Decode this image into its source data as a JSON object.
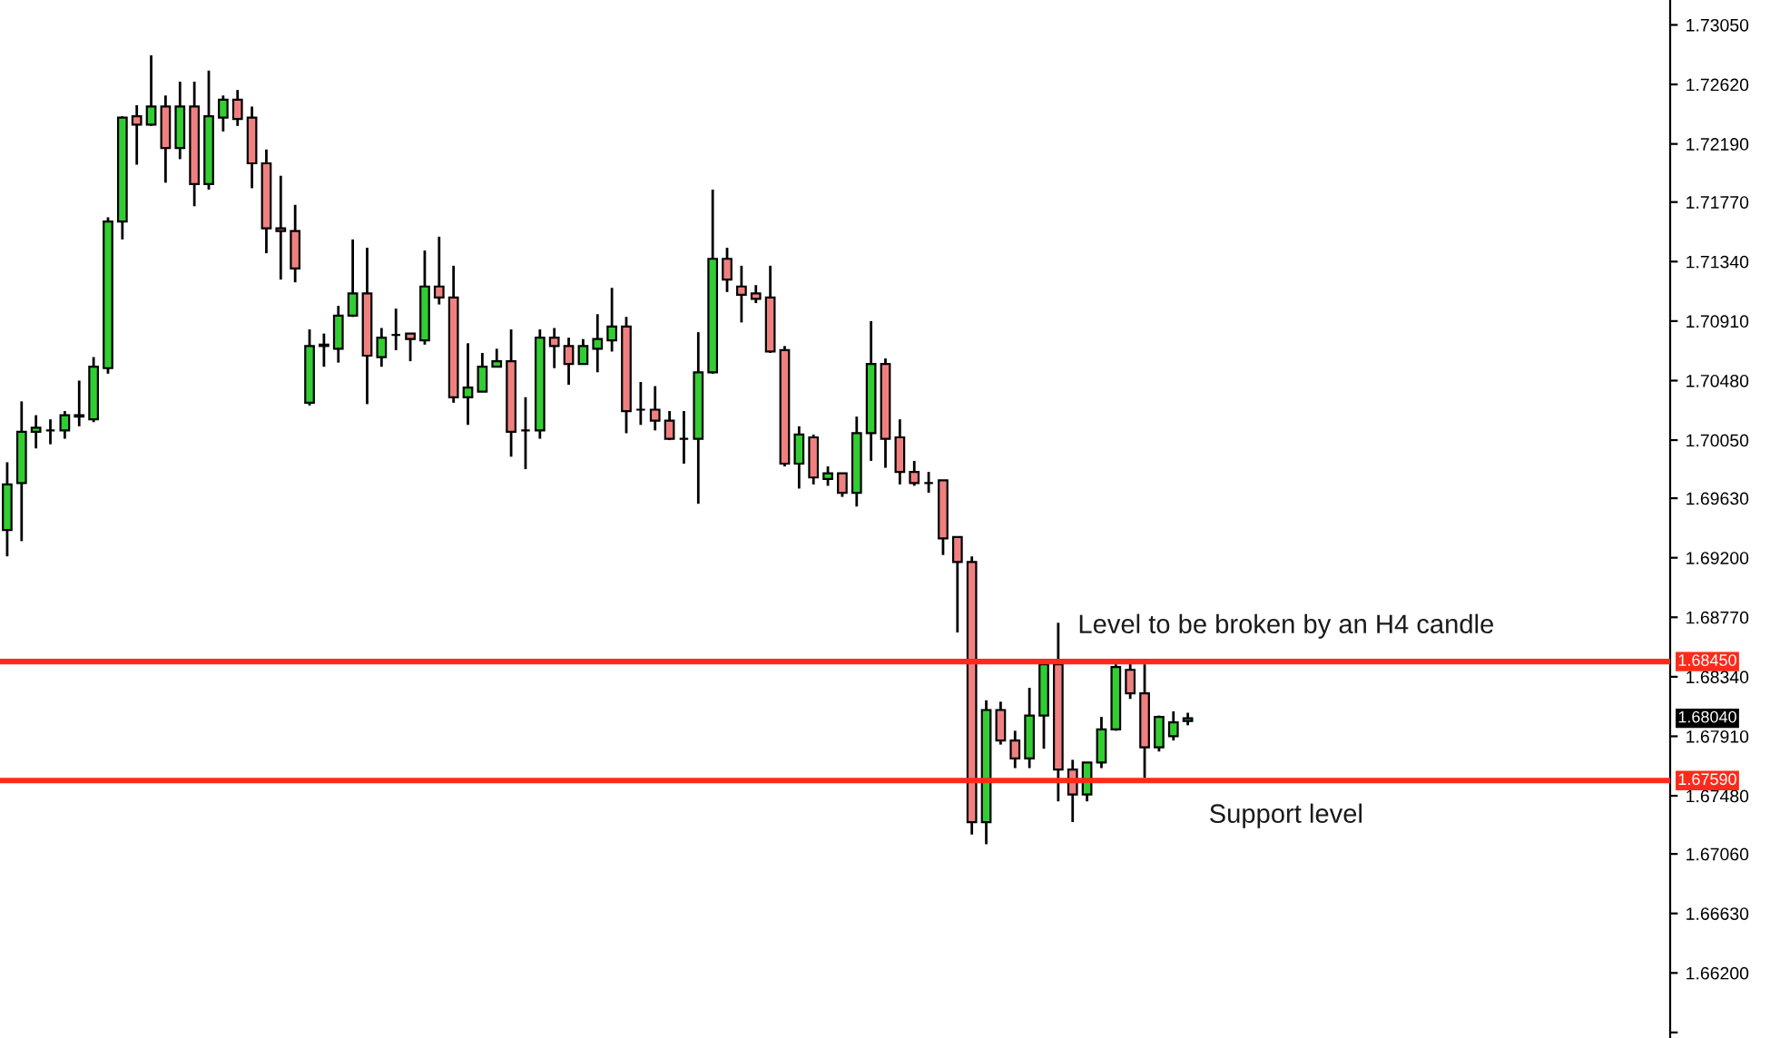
{
  "chart_data": {
    "type": "candlestick",
    "categories": [
      null,
      null,
      null,
      null,
      null,
      null,
      null,
      null,
      null,
      null,
      null,
      null,
      null,
      null,
      null,
      null,
      null,
      null,
      null,
      null,
      null,
      null,
      null,
      null,
      null,
      null,
      null,
      null,
      null,
      null,
      null,
      null,
      null,
      null,
      null,
      null,
      null,
      null,
      null,
      null,
      null,
      null,
      null,
      null,
      null,
      null,
      null,
      null,
      null,
      null,
      null,
      null,
      null,
      null,
      null,
      null,
      null,
      null,
      null,
      null,
      null,
      null,
      null,
      null,
      null,
      null,
      null,
      null,
      null,
      null,
      null,
      null,
      null,
      null,
      null,
      null,
      null,
      null,
      null,
      null,
      null,
      null,
      null,
      null,
      null,
      null,
      null,
      null,
      null,
      null,
      null,
      null,
      null,
      null,
      null,
      null,
      null,
      null,
      null,
      null,
      null,
      null,
      null,
      null,
      null,
      null,
      null,
      null,
      null,
      null,
      null,
      null,
      null,
      null,
      null,
      null
    ],
    "ohlc": [
      [
        1.694,
        1.6989,
        1.6921,
        1.6973
      ],
      [
        1.6974,
        1.7033,
        1.6932,
        1.7011
      ],
      [
        1.7011,
        1.7023,
        1.6999,
        1.7014
      ],
      [
        1.7012,
        1.702,
        1.7002,
        1.7012
      ],
      [
        1.7012,
        1.7026,
        1.7006,
        1.7023
      ],
      [
        1.7022,
        1.7048,
        1.7015,
        1.7023
      ],
      [
        1.702,
        1.7065,
        1.7018,
        1.7058
      ],
      [
        1.7057,
        1.7166,
        1.7053,
        1.7163
      ],
      [
        1.7163,
        1.7239,
        1.715,
        1.7238
      ],
      [
        1.7239,
        1.7247,
        1.7204,
        1.7233
      ],
      [
        1.7233,
        1.7283,
        1.7232,
        1.7246
      ],
      [
        1.7246,
        1.7254,
        1.7191,
        1.7216
      ],
      [
        1.7216,
        1.7264,
        1.7208,
        1.7246
      ],
      [
        1.7246,
        1.7264,
        1.7174,
        1.719
      ],
      [
        1.719,
        1.7272,
        1.7186,
        1.7239
      ],
      [
        1.7238,
        1.7254,
        1.7228,
        1.7251
      ],
      [
        1.7251,
        1.7258,
        1.7232,
        1.7237
      ],
      [
        1.7238,
        1.7246,
        1.7187,
        1.7205
      ],
      [
        1.7205,
        1.7215,
        1.714,
        1.7158
      ],
      [
        1.7158,
        1.7196,
        1.7121,
        1.7156
      ],
      [
        1.7156,
        1.7175,
        1.7119,
        1.7129
      ],
      [
        1.7032,
        1.7085,
        1.703,
        1.7073
      ],
      [
        1.7073,
        1.7082,
        1.7058,
        1.7074
      ],
      [
        1.7071,
        1.7102,
        1.7061,
        1.7095
      ],
      [
        1.7095,
        1.715,
        1.7094,
        1.7111
      ],
      [
        1.7111,
        1.7144,
        1.7031,
        1.7066
      ],
      [
        1.7065,
        1.7086,
        1.7058,
        1.7079
      ],
      [
        1.7081,
        1.71,
        1.707,
        1.7081
      ],
      [
        1.7082,
        1.7082,
        1.7062,
        1.7078
      ],
      [
        1.7077,
        1.7142,
        1.7074,
        1.7116
      ],
      [
        1.7116,
        1.7152,
        1.7103,
        1.7108
      ],
      [
        1.7108,
        1.7131,
        1.7032,
        1.7036
      ],
      [
        1.7036,
        1.7075,
        1.7016,
        1.7043
      ],
      [
        1.704,
        1.7068,
        1.704,
        1.7058
      ],
      [
        1.7058,
        1.7071,
        1.7058,
        1.7062
      ],
      [
        1.7062,
        1.7085,
        1.6993,
        1.7011
      ],
      [
        1.7012,
        1.7036,
        1.6984,
        1.7012
      ],
      [
        1.7012,
        1.7085,
        1.7006,
        1.7079
      ],
      [
        1.7079,
        1.7086,
        1.7057,
        1.7073
      ],
      [
        1.7073,
        1.7079,
        1.7045,
        1.706
      ],
      [
        1.706,
        1.7078,
        1.706,
        1.7073
      ],
      [
        1.7071,
        1.7096,
        1.7054,
        1.7078
      ],
      [
        1.7077,
        1.7115,
        1.7069,
        1.7087
      ],
      [
        1.7087,
        1.7094,
        1.701,
        1.7026
      ],
      [
        1.7027,
        1.7047,
        1.7016,
        1.7027
      ],
      [
        1.7027,
        1.7044,
        1.7012,
        1.7019
      ],
      [
        1.7019,
        1.7026,
        1.7005,
        1.7006
      ],
      [
        1.7006,
        1.7026,
        1.6988,
        1.7006
      ],
      [
        1.7006,
        1.7083,
        1.6959,
        1.7054
      ],
      [
        1.7054,
        1.7186,
        1.7053,
        1.7136
      ],
      [
        1.7136,
        1.7144,
        1.7112,
        1.7121
      ],
      [
        1.7116,
        1.7131,
        1.709,
        1.711
      ],
      [
        1.7111,
        1.7117,
        1.7104,
        1.7107
      ],
      [
        1.7108,
        1.7131,
        1.7068,
        1.7069
      ],
      [
        1.707,
        1.7073,
        1.6986,
        1.6988
      ],
      [
        1.6988,
        1.7015,
        1.697,
        1.7009
      ],
      [
        1.7007,
        1.7009,
        1.6973,
        1.6978
      ],
      [
        1.6977,
        1.6986,
        1.6972,
        1.6981
      ],
      [
        1.6981,
        1.6981,
        1.6964,
        1.6967
      ],
      [
        1.6967,
        1.7022,
        1.6957,
        1.701
      ],
      [
        1.701,
        1.7091,
        1.699,
        1.706
      ],
      [
        1.706,
        1.7064,
        1.6985,
        1.7006
      ],
      [
        1.7007,
        1.702,
        1.6973,
        1.6982
      ],
      [
        1.6982,
        1.699,
        1.6972,
        1.6974
      ],
      [
        1.6974,
        1.6982,
        1.6967,
        1.6974
      ],
      [
        1.6976,
        1.6976,
        1.6922,
        1.6934
      ],
      [
        1.6935,
        1.6935,
        1.6866,
        1.6917
      ],
      [
        1.6917,
        1.6921,
        1.672,
        1.6729
      ],
      [
        1.6729,
        1.6817,
        1.6713,
        1.681
      ],
      [
        1.681,
        1.6816,
        1.6785,
        1.6788
      ],
      [
        1.6788,
        1.6795,
        1.6768,
        1.6775
      ],
      [
        1.6775,
        1.6826,
        1.6768,
        1.6806
      ],
      [
        1.6806,
        1.6843,
        1.6782,
        1.6843
      ],
      [
        1.6843,
        1.6873,
        1.6744,
        1.6767
      ],
      [
        1.6767,
        1.6774,
        1.6729,
        1.6749
      ],
      [
        1.6749,
        1.6772,
        1.6744,
        1.6772
      ],
      [
        1.6772,
        1.6805,
        1.6768,
        1.6796
      ],
      [
        1.6796,
        1.6843,
        1.6795,
        1.6841
      ],
      [
        1.6839,
        1.6847,
        1.6818,
        1.6822
      ],
      [
        1.6822,
        1.6843,
        1.6761,
        1.6783
      ],
      [
        1.6783,
        1.6806,
        1.678,
        1.6805
      ],
      [
        1.6791,
        1.6809,
        1.6788,
        1.6801
      ],
      [
        1.6802,
        1.6808,
        1.6799,
        1.6804
      ],
      null,
      null,
      null,
      null,
      null,
      null,
      null,
      null,
      null,
      null,
      null,
      null,
      null,
      null,
      null,
      null,
      null,
      null,
      null,
      null,
      null,
      null,
      null,
      null,
      null,
      null,
      null,
      null,
      null,
      null,
      null,
      null,
      null
    ],
    "colors": [
      "#32cd32",
      "#32cd32",
      "#32cd32",
      "#000000",
      "#32cd32",
      "#32cd32",
      "#32cd32",
      "#32cd32",
      "#32cd32",
      "#f08080",
      "#32cd32",
      "#f08080",
      "#32cd32",
      "#f08080",
      "#32cd32",
      "#32cd32",
      "#f08080",
      "#f08080",
      "#f08080",
      "#f08080",
      "#f08080",
      "#32cd32",
      "#32cd32",
      "#32cd32",
      "#32cd32",
      "#f08080",
      "#32cd32",
      "#000000",
      "#f08080",
      "#32cd32",
      "#f08080",
      "#f08080",
      "#32cd32",
      "#32cd32",
      "#32cd32",
      "#f08080",
      "#000000",
      "#32cd32",
      "#f08080",
      "#f08080",
      "#32cd32",
      "#32cd32",
      "#32cd32",
      "#f08080",
      "#000000",
      "#f08080",
      "#f08080",
      "#000000",
      "#32cd32",
      "#32cd32",
      "#f08080",
      "#f08080",
      "#f08080",
      "#f08080",
      "#f08080",
      "#32cd32",
      "#f08080",
      "#32cd32",
      "#f08080",
      "#32cd32",
      "#32cd32",
      "#f08080",
      "#f08080",
      "#f08080",
      "#000000",
      "#f08080",
      "#f08080",
      "#f08080",
      "#32cd32",
      "#f08080",
      "#f08080",
      "#32cd32",
      "#32cd32",
      "#f08080",
      "#f08080",
      "#32cd32",
      "#32cd32",
      "#32cd32",
      "#f08080",
      "#f08080",
      "#32cd32",
      "#32cd32",
      "#32cd32",
      null,
      null,
      null,
      null,
      null,
      null,
      null,
      null,
      null,
      null,
      null,
      null,
      null,
      null,
      null,
      null,
      null,
      null,
      null,
      null,
      null,
      null,
      null,
      null,
      null,
      null,
      null,
      null,
      null,
      null,
      null,
      null,
      null
    ],
    "ylim": [
      1.6573,
      1.7323
    ],
    "yticks": [
      {
        "value": 1.7305,
        "label": "1.73050"
      },
      {
        "value": 1.7262,
        "label": "1.72620"
      },
      {
        "value": 1.7219,
        "label": "1.72190"
      },
      {
        "value": 1.7177,
        "label": "1.71770"
      },
      {
        "value": 1.7134,
        "label": "1.71340"
      },
      {
        "value": 1.7091,
        "label": "1.70910"
      },
      {
        "value": 1.7048,
        "label": "1.70480"
      },
      {
        "value": 1.7005,
        "label": "1.70050"
      },
      {
        "value": 1.6963,
        "label": "1.69630"
      },
      {
        "value": 1.692,
        "label": "1.69200"
      },
      {
        "value": 1.6877,
        "label": "1.68770"
      },
      {
        "value": 1.6834,
        "label": "1.68340"
      },
      {
        "value": 1.6791,
        "label": "1.67910"
      },
      {
        "value": 1.6748,
        "label": "1.67480"
      },
      {
        "value": 1.6706,
        "label": "1.67060"
      },
      {
        "value": 1.6663,
        "label": "1.66630"
      },
      {
        "value": 1.662,
        "label": "1.66200"
      },
      {
        "value": 1.6577,
        "label": null
      }
    ],
    "grid": false,
    "ref_lines": [
      {
        "axis": "y",
        "value": 1.6845,
        "label": "1.68450",
        "color": "#ff2a1a"
      },
      {
        "axis": "y",
        "value": 1.6759,
        "label": "1.67590",
        "color": "#ff2a1a"
      }
    ],
    "annotations": [
      "Level to be broken by an H4 candle",
      "Support level",
      "1.68040"
    ]
  }
}
